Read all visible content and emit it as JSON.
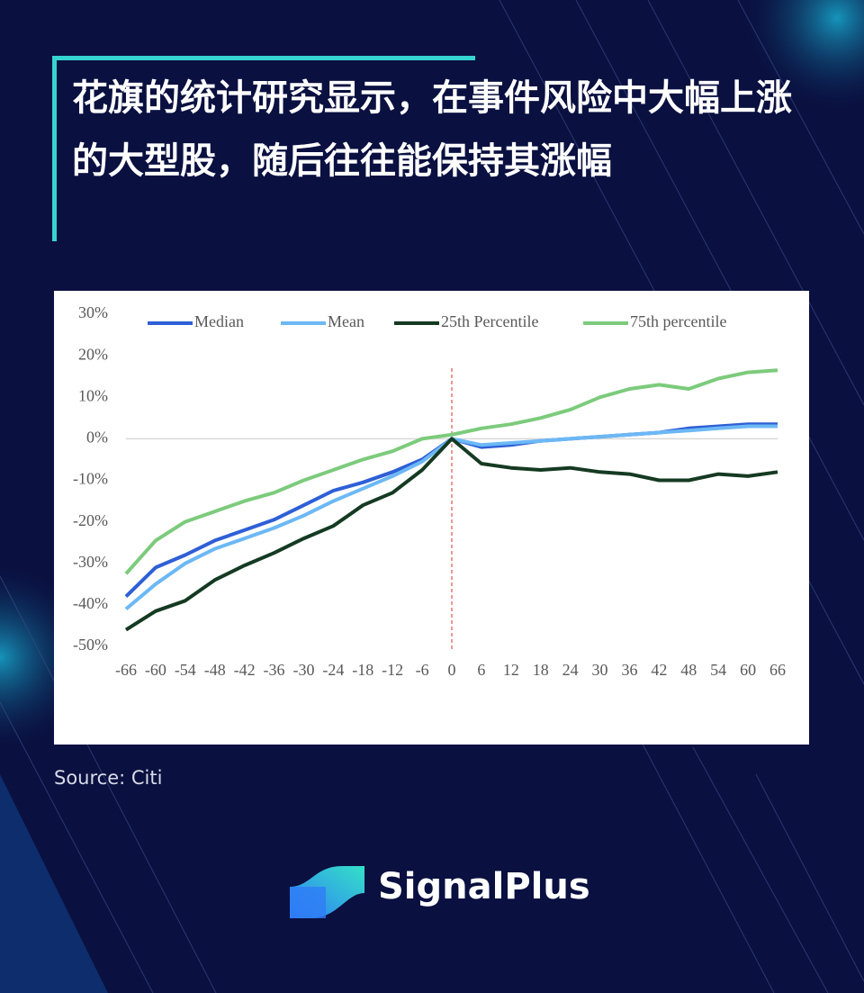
{
  "header": {
    "title": "花旗的统计研究显示，在事件风险中大幅上涨的大型股，随后往往能保持其涨幅"
  },
  "chart_data": {
    "type": "line",
    "x": [
      -66,
      -60,
      -54,
      -48,
      -42,
      -36,
      -30,
      -24,
      -18,
      -12,
      -6,
      0,
      6,
      12,
      18,
      24,
      30,
      36,
      42,
      48,
      54,
      60,
      66
    ],
    "series": [
      {
        "name": "Median",
        "color": "#2e5fd6",
        "values": [
          -38,
          -31,
          -28,
          -24.5,
          -22,
          -19.5,
          -16,
          -12.5,
          -10.5,
          -8,
          -5,
          0,
          -2,
          -1.5,
          -0.5,
          0,
          0.5,
          1,
          1.5,
          2.5,
          3,
          3.5,
          3.5
        ]
      },
      {
        "name": "Mean",
        "color": "#6cb8f5",
        "values": [
          -41,
          -35,
          -30,
          -26.5,
          -24,
          -21.5,
          -18.5,
          -15,
          -12,
          -9,
          -5.5,
          0,
          -1.5,
          -1,
          -0.5,
          0,
          0.5,
          1,
          1.5,
          2,
          2.5,
          3,
          3
        ]
      },
      {
        "name": "25th Percentile",
        "color": "#153a22",
        "values": [
          -46,
          -41.5,
          -39,
          -34,
          -30.5,
          -27.5,
          -24,
          -21,
          -16,
          -13,
          -7.5,
          0,
          -6,
          -7,
          -7.5,
          -7,
          -8,
          -8.5,
          -10,
          -10,
          -8.5,
          -9,
          -8
        ]
      },
      {
        "name": "75th percentile",
        "color": "#7ccb7c",
        "values": [
          -32.5,
          -24.5,
          -20,
          -17.5,
          -15,
          -13,
          -10,
          -7.5,
          -5,
          -3,
          0,
          1,
          2.5,
          3.5,
          5,
          7,
          10,
          12,
          13,
          12,
          14.5,
          16,
          16.5
        ]
      }
    ],
    "xlim": [
      -66,
      66
    ],
    "xticks": [
      -66,
      -60,
      -54,
      -48,
      -42,
      -36,
      -30,
      -24,
      -18,
      -12,
      -6,
      0,
      6,
      12,
      18,
      24,
      30,
      36,
      42,
      48,
      54,
      60,
      66
    ],
    "ylim": [
      -50,
      30
    ],
    "yticks": [
      {
        "value": -50,
        "label": "-50%"
      },
      {
        "value": -40,
        "label": "-40%"
      },
      {
        "value": -30,
        "label": "-30%"
      },
      {
        "value": -20,
        "label": "-20%"
      },
      {
        "value": -10,
        "label": "-10%"
      },
      {
        "value": 0,
        "label": "0%"
      },
      {
        "value": 10,
        "label": "10%"
      },
      {
        "value": 20,
        "label": "20%"
      },
      {
        "value": 30,
        "label": "30%"
      }
    ],
    "grid": false,
    "legend": "top",
    "event_line_x": 0
  },
  "source": "Source: Citi",
  "brand": "SignalPlus"
}
